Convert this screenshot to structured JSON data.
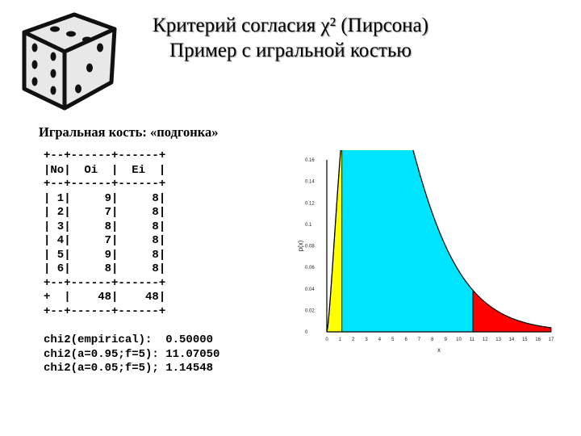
{
  "title": {
    "line1": "Критерий согласия χ² (Пирсона)",
    "line2": "Пример с игральной костью"
  },
  "subheading": "Игральная кость: «подгонка»",
  "illustration": {
    "icon": "dice-icon"
  },
  "table": {
    "border": "+--+------+------+",
    "header": "|No|  Oi  |  Ei  |",
    "rows": [
      "| 1|     9|     8|",
      "| 2|     7|     8|",
      "| 3|     8|     8|",
      "| 4|     7|     8|",
      "| 5|     9|     8|",
      "| 6|     8|     8|"
    ],
    "total_row": "+  |    48|    48|"
  },
  "stats": {
    "empirical": "chi2(empirical):  0.50000",
    "upper": "chi2(a=0.95;f=5): 11.07050",
    "lower": "chi2(a=0.05;f=5); 1.14548"
  },
  "chart_data": {
    "type": "area",
    "distribution": "chi-square, f=5",
    "xlabel": "x",
    "ylabel": "p(x)",
    "x_ticks": [
      0,
      1,
      2,
      3,
      4,
      5,
      6,
      7,
      8,
      9,
      10,
      11,
      12,
      13,
      14,
      15,
      16,
      17
    ],
    "y_ticks": [
      "0",
      "0.02",
      "0.04",
      "0.06",
      "0.08",
      "0.1",
      "0.12",
      "0.14",
      "0.16"
    ],
    "xlim": [
      0,
      17
    ],
    "ylim": [
      0,
      0.16
    ],
    "regions": [
      {
        "from": 0,
        "to": 1.14548,
        "color": "#ffff00"
      },
      {
        "from": 1.14548,
        "to": 11.0705,
        "color": "#00e5ff"
      },
      {
        "from": 11.0705,
        "to": 17,
        "color": "#ff0000"
      }
    ],
    "curve_color": "#000000"
  }
}
